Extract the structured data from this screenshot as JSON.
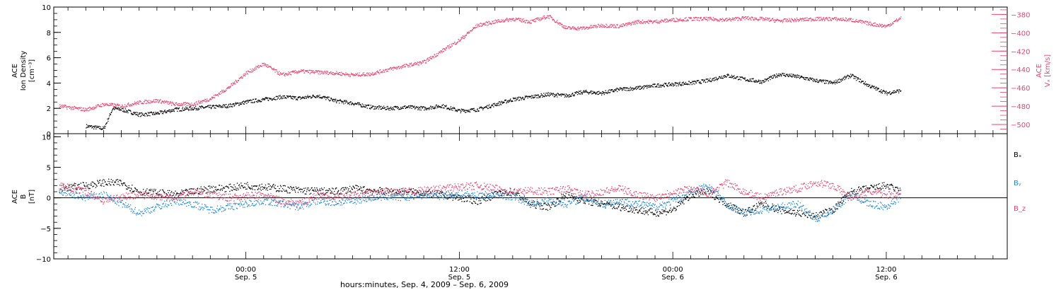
{
  "colors": {
    "black": "#000000",
    "pink": "#e8446f",
    "blue": "#1e88d8"
  },
  "chart_data": [
    {
      "type": "scatter",
      "panel": "top",
      "left_axis": {
        "label_lines": [
          "ACE",
          "Ion Density",
          "[cm⁻³]"
        ],
        "ylim": [
          0,
          10
        ],
        "ticks": [
          0,
          2,
          4,
          6,
          8,
          10
        ]
      },
      "right_axis": {
        "label_lines": [
          "ACE",
          "Vₓ [km/s]"
        ],
        "ylim": [
          -510,
          -372
        ],
        "ticks": [
          -500,
          -480,
          -460,
          -440,
          -420,
          -400,
          -380
        ],
        "color": "#e8446f"
      },
      "series": [
        {
          "axis": "left",
          "color": "#000000",
          "x": [
            -9,
            -8,
            -7.5,
            -7,
            -6,
            -5,
            -4,
            -3,
            -2,
            -1,
            0,
            1,
            2,
            3,
            4,
            5,
            6,
            7,
            8,
            9,
            10,
            11,
            12,
            13,
            14,
            15,
            16,
            17,
            18,
            19,
            20,
            21,
            22,
            23,
            24,
            25,
            26,
            27,
            28,
            29,
            30,
            31,
            32,
            33,
            34,
            35,
            36,
            36.8
          ],
          "y": [
            0.6,
            0.4,
            2.0,
            1.9,
            1.5,
            1.6,
            1.9,
            2.0,
            2.1,
            2.2,
            2.5,
            2.7,
            2.9,
            2.8,
            3.0,
            2.6,
            2.4,
            2.1,
            2.0,
            2.1,
            2.0,
            2.2,
            1.8,
            1.9,
            2.3,
            2.7,
            2.9,
            3.1,
            3.0,
            3.3,
            3.2,
            3.5,
            3.6,
            3.8,
            3.9,
            4.0,
            4.2,
            4.6,
            4.3,
            4.1,
            4.7,
            4.5,
            4.2,
            4.0,
            4.6,
            3.8,
            3.2,
            3.4
          ]
        },
        {
          "axis": "right",
          "color": "#e8446f",
          "x": [
            -10.5,
            -9,
            -8,
            -7,
            -6,
            -5,
            -4,
            -3,
            -2,
            -1,
            0,
            1,
            2,
            3,
            4,
            5,
            6,
            7,
            8,
            9,
            10,
            11,
            12,
            13,
            14,
            15,
            16,
            17,
            18,
            19,
            20,
            21,
            22,
            23,
            24,
            25,
            26,
            27,
            28,
            29,
            30,
            31,
            32,
            33,
            34,
            35,
            36,
            36.8
          ],
          "y": [
            -480,
            -484,
            -478,
            -480,
            -476,
            -474,
            -478,
            -478,
            -472,
            -460,
            -444,
            -434,
            -446,
            -442,
            -443,
            -444,
            -446,
            -445,
            -440,
            -436,
            -432,
            -420,
            -408,
            -392,
            -388,
            -385,
            -388,
            -382,
            -395,
            -395,
            -392,
            -393,
            -388,
            -388,
            -386,
            -385,
            -385,
            -386,
            -384,
            -385,
            -387,
            -386,
            -385,
            -385,
            -386,
            -390,
            -393,
            -384
          ]
        }
      ]
    },
    {
      "type": "scatter",
      "panel": "bottom",
      "left_axis": {
        "label_lines": [
          "ACE",
          "B",
          "[nT]"
        ],
        "ylim": [
          -10,
          10.5
        ],
        "ticks": [
          -10,
          -5,
          0,
          5,
          10
        ]
      },
      "zero_line": true,
      "series": [
        {
          "name": "Bₓ",
          "color": "#000000",
          "x": [
            -10.5,
            -9,
            -8,
            -7,
            -6,
            -5,
            -4,
            -3,
            -2,
            -1,
            0,
            1,
            2,
            3,
            4,
            5,
            6,
            7,
            8,
            9,
            10,
            11,
            12,
            13,
            14,
            15,
            16,
            17,
            18,
            19,
            20,
            21,
            22,
            23,
            24,
            25,
            26,
            27,
            28,
            29,
            30,
            31,
            32,
            33,
            34,
            35,
            36,
            36.8
          ],
          "y": [
            1.5,
            2.0,
            2.5,
            2.4,
            1.0,
            0.8,
            0.5,
            1.0,
            1.5,
            1.6,
            2.0,
            1.8,
            1.5,
            1.2,
            1.1,
            1.0,
            1.5,
            1.2,
            1.0,
            1.0,
            0.8,
            0.5,
            0.0,
            -0.5,
            0.5,
            1.0,
            -1.0,
            -1.5,
            0.5,
            -0.5,
            -1.0,
            -1.5,
            -2.0,
            -2.5,
            -2.0,
            0.5,
            1.0,
            -1.0,
            -2.5,
            -1.0,
            -2.0,
            -2.5,
            -3.0,
            -2.0,
            1.0,
            1.5,
            2.0,
            1.0
          ]
        },
        {
          "name": "Bᵧ",
          "color": "#1e88d8",
          "x": [
            -10.5,
            -9,
            -8,
            -7,
            -6,
            -5,
            -4,
            -3,
            -2,
            -1,
            0,
            1,
            2,
            3,
            4,
            5,
            6,
            7,
            8,
            9,
            10,
            11,
            12,
            13,
            14,
            15,
            16,
            17,
            18,
            19,
            20,
            21,
            22,
            23,
            24,
            25,
            26,
            27,
            28,
            29,
            30,
            31,
            32,
            33,
            34,
            35,
            36,
            36.8
          ],
          "y": [
            1.0,
            0.0,
            0.5,
            -1.0,
            -2.5,
            -1.5,
            -0.5,
            -1.0,
            -2.0,
            -1.5,
            -1.0,
            -0.5,
            -1.0,
            -1.5,
            -0.5,
            -0.8,
            -0.5,
            0.0,
            0.2,
            0.0,
            0.5,
            0.3,
            0.6,
            0.4,
            0.5,
            0.2,
            -1.0,
            -0.5,
            -1.0,
            0.0,
            -1.0,
            -0.5,
            -1.0,
            -1.5,
            -0.5,
            1.0,
            2.0,
            -1.0,
            -2.5,
            -2.0,
            -1.5,
            -1.0,
            -3.5,
            -2.0,
            0.5,
            -1.0,
            -1.5,
            0.2
          ]
        },
        {
          "name": "B_z",
          "color": "#e8446f",
          "x": [
            -10.5,
            -9,
            -8,
            -7,
            -6,
            -5,
            -4,
            -3,
            -2,
            -1,
            0,
            1,
            2,
            3,
            4,
            5,
            6,
            7,
            8,
            9,
            10,
            11,
            12,
            13,
            14,
            15,
            16,
            17,
            18,
            19,
            20,
            21,
            22,
            23,
            24,
            25,
            26,
            27,
            28,
            29,
            30,
            31,
            32,
            33,
            34,
            35,
            36,
            36.8
          ],
          "y": [
            2.0,
            1.0,
            -0.5,
            0.2,
            0.5,
            0.3,
            0.0,
            1.0,
            0.5,
            0.0,
            0.3,
            0.5,
            -0.5,
            -1.0,
            0.5,
            0.2,
            0.5,
            0.8,
            1.0,
            1.0,
            1.2,
            1.5,
            1.8,
            2.0,
            1.5,
            1.0,
            1.2,
            1.0,
            1.5,
            0.5,
            1.0,
            1.5,
            0.5,
            0.0,
            1.0,
            1.5,
            0.5,
            2.5,
            1.0,
            0.0,
            1.0,
            1.5,
            2.5,
            2.0,
            0.0,
            1.0,
            0.5,
            0.5
          ]
        }
      ]
    }
  ],
  "x_axis": {
    "xlim": [
      -10.8,
      42.8
    ],
    "major_ticks": [
      {
        "x": 0,
        "line1": "00:00",
        "line2": "Sep. 5"
      },
      {
        "x": 12,
        "line1": "12:00",
        "line2": "Sep. 5"
      },
      {
        "x": 24,
        "line1": "00:00",
        "line2": "Sep. 6"
      },
      {
        "x": 36,
        "line1": "12:00",
        "line2": "Sep. 6"
      }
    ],
    "minor_step": 1,
    "title": "hours:minutes, Sep.  4, 2009 – Sep.  6, 2009"
  }
}
